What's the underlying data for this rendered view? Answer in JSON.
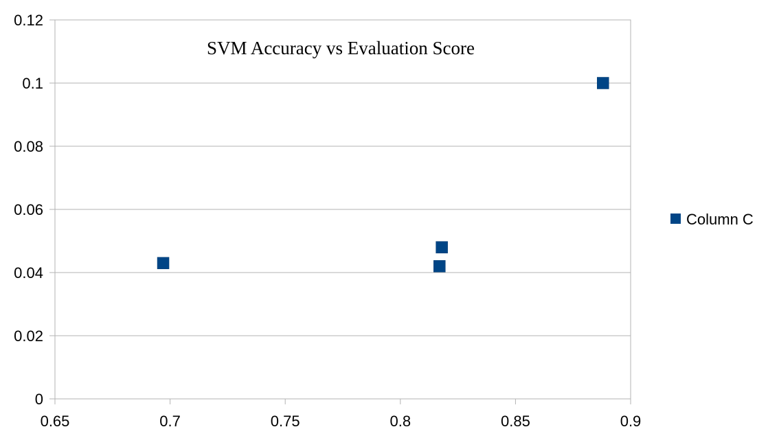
{
  "chart_data": {
    "type": "scatter",
    "title": "SVM Accuracy vs Evaluation Score",
    "xlabel": "",
    "ylabel": "",
    "xlim": [
      0.65,
      0.9
    ],
    "ylim": [
      0,
      0.12
    ],
    "x_ticks": [
      "0.65",
      "0.7",
      "0.75",
      "0.8",
      "0.85",
      "0.9"
    ],
    "y_ticks": [
      "0",
      "0.02",
      "0.04",
      "0.06",
      "0.08",
      "0.1",
      "0.12"
    ],
    "grid": true,
    "legend_position": "right",
    "series": [
      {
        "name": "Column C",
        "color": "#004586",
        "marker": "square",
        "points": [
          {
            "x": 0.697,
            "y": 0.043
          },
          {
            "x": 0.817,
            "y": 0.042
          },
          {
            "x": 0.818,
            "y": 0.048
          },
          {
            "x": 0.888,
            "y": 0.1
          }
        ]
      }
    ]
  }
}
